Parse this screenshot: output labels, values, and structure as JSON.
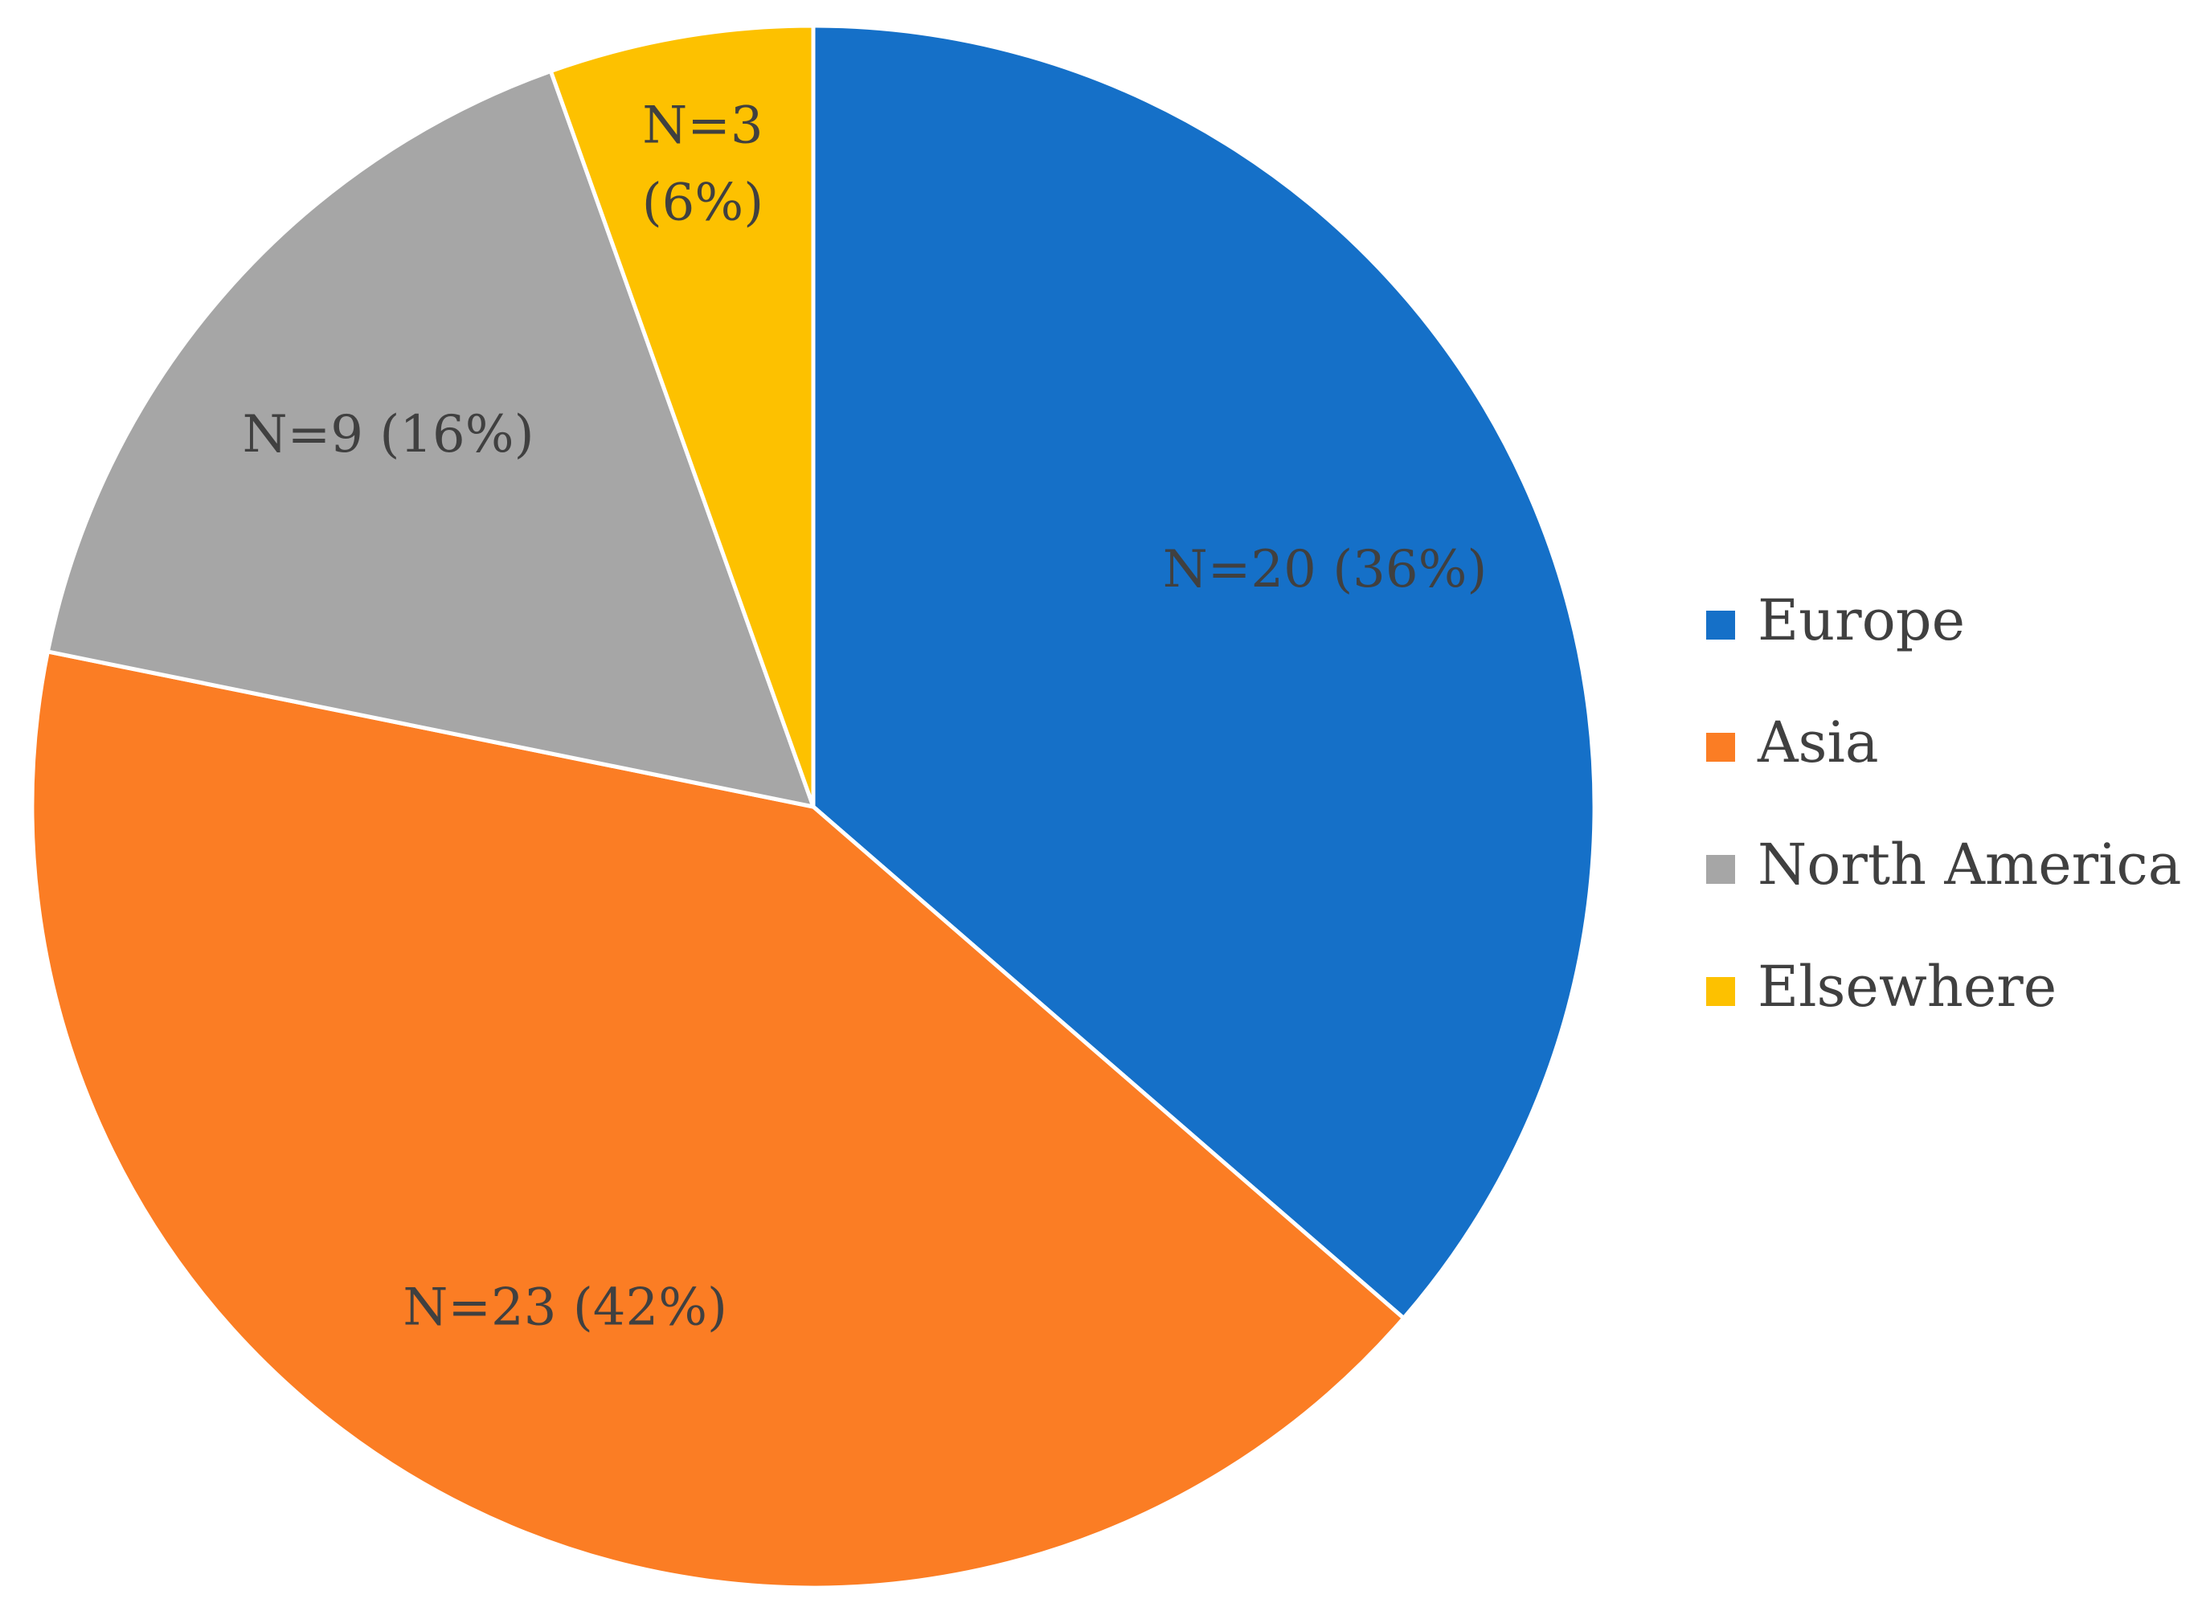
{
  "chart_data": {
    "type": "pie",
    "start_angle_deg": 0,
    "direction": "clockwise",
    "legend_position": "right",
    "slices": [
      {
        "category": "Europe",
        "value": 20,
        "percent": 36,
        "color": "#1570C8",
        "label_lines": [
          "N=20 (36%)"
        ]
      },
      {
        "category": "Asia",
        "value": 23,
        "percent": 42,
        "color": "#FB7D24",
        "label_lines": [
          "N=23 (42%)"
        ]
      },
      {
        "category": "North America",
        "value": 9,
        "percent": 16,
        "color": "#A6A6A6",
        "label_lines": [
          "N=9 (16%)"
        ]
      },
      {
        "category": "Elsewhere",
        "value": 3,
        "percent": 6,
        "color": "#FDC100",
        "label_lines": [
          "N=3",
          "(6%)"
        ]
      }
    ]
  }
}
